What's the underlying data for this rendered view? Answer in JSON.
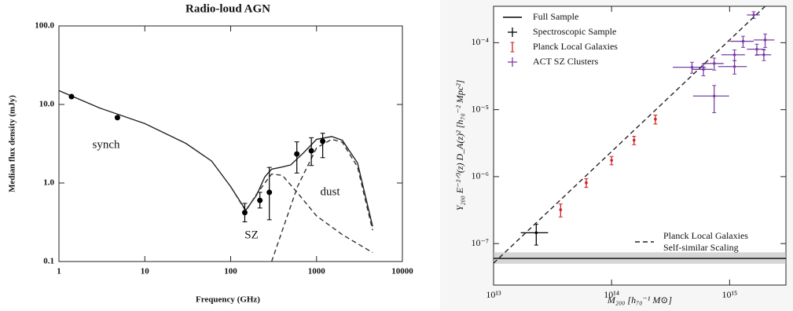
{
  "chart_data": [
    {
      "type": "line",
      "title": "Radio-loud AGN",
      "x_label": "Frequency (GHz)",
      "y_label": "Median flux density (mJy)",
      "xscale": "log",
      "yscale": "log",
      "xlim": [
        1,
        10000
      ],
      "ylim": [
        0.1,
        100
      ],
      "xticks": [
        1,
        10,
        100,
        1000,
        10000
      ],
      "yticks": [
        {
          "value": 0.1,
          "label": "0.1"
        },
        {
          "value": 1,
          "label": "1.0"
        },
        {
          "value": 10,
          "label": "10.0"
        },
        {
          "value": 100,
          "label": "100.0"
        }
      ],
      "annotations": [
        "synch",
        "SZ",
        "dust"
      ],
      "series": [
        {
          "kind": "line",
          "style": "solid",
          "color": "#222222",
          "x": [
            1,
            3,
            10,
            30,
            60,
            100,
            150,
            200,
            250,
            300,
            400,
            500,
            700,
            1000,
            1500,
            2000,
            3000,
            4500
          ],
          "values": [
            15,
            9,
            5.7,
            3.2,
            1.9,
            0.9,
            0.45,
            0.7,
            1.2,
            1.5,
            1.6,
            1.7,
            2.4,
            3.6,
            3.9,
            3.5,
            1.8,
            0.28
          ]
        },
        {
          "kind": "line",
          "style": "dashed",
          "color": "#333333",
          "x": [
            100,
            150,
            200,
            300,
            400,
            600,
            1000,
            2000,
            4500
          ],
          "values": [
            0.9,
            0.44,
            0.72,
            1.3,
            1.25,
            0.75,
            0.38,
            0.22,
            0.13
          ]
        },
        {
          "kind": "line",
          "style": "dashed",
          "color": "#333333",
          "x": [
            300,
            400,
            600,
            1000,
            1500,
            2000,
            3000,
            4500
          ],
          "values": [
            0.1,
            0.25,
            0.9,
            2.8,
            3.6,
            3.3,
            1.6,
            0.25
          ]
        },
        {
          "kind": "errorbar",
          "color": "#000000",
          "x": [
            1.4,
            4.8,
            146,
            219,
            282,
            590,
            870,
            1180
          ],
          "values": [
            12.6,
            6.8,
            0.42,
            0.6,
            0.76,
            2.34,
            2.57,
            3.4
          ],
          "yerr_low": [
            0,
            0,
            0.1,
            0.12,
            0.42,
            1.0,
            0.9,
            1.3
          ],
          "yerr_high": [
            0,
            0,
            0.13,
            0.16,
            0.82,
            1.0,
            1.2,
            0.9
          ]
        }
      ]
    },
    {
      "type": "scatter",
      "x_label": "M₂₀₀ [h₇₀⁻¹ M⊙]",
      "y_label": "Y₂₀₀ E⁻²ᐟ³(z) D_A(z)² [h₇₀⁻² Mpc²]",
      "xscale": "log",
      "yscale": "log",
      "xlim": [
        10000000000000.0,
        3000000000000000.0
      ],
      "ylim": [
        2.4e-08,
        0.00035
      ],
      "xticks": [
        {
          "value": 10000000000000.0,
          "label": "10¹³"
        },
        {
          "value": 100000000000000.0,
          "label": "10¹⁴"
        },
        {
          "value": 1000000000000000.0,
          "label": "10¹⁵"
        }
      ],
      "yticks": [
        {
          "value": 1e-07,
          "label": "10⁻⁷"
        },
        {
          "value": 1e-06,
          "label": "10⁻⁶"
        },
        {
          "value": 1e-05,
          "label": "10⁻⁵"
        },
        {
          "value": 0.0001,
          "label": "10⁻⁴"
        }
      ],
      "legend": "upper left",
      "series": [
        {
          "name": "Full Sample",
          "kind": "line",
          "style": "solid",
          "color": "#000000",
          "x": [
            10000000000000.0,
            3000000000000000.0
          ],
          "values": [
            6e-08,
            6e-08
          ],
          "band_low": [
            5e-08,
            5e-08
          ],
          "band_high": [
            7.4e-08,
            7.4e-08
          ]
        },
        {
          "name": "Spectroscopic Sample",
          "kind": "errorbar",
          "color": "#000000",
          "x": [
            23000000000000.0
          ],
          "values": [
            1.45e-07
          ],
          "xerr": [
            6000000000000.0
          ],
          "yerr": [
            5e-08
          ]
        },
        {
          "name": "Planck Local Galaxies",
          "kind": "errorbar",
          "color": "#cc2222",
          "x": [
            37000000000000.0,
            61000000000000.0,
            100000000000000.0,
            155000000000000.0,
            235000000000000.0
          ],
          "values": [
            3.2e-07,
            8.1e-07,
            1.75e-06,
            3.5e-06,
            7.2e-06
          ],
          "xerr": [
            0,
            0,
            0,
            0,
            0
          ],
          "yerr": [
            7e-08,
            1.2e-07,
            2.5e-07,
            5e-07,
            1.1e-06
          ]
        },
        {
          "name": "ACT SZ Clusters",
          "kind": "errorbar",
          "color": "#7a3fa6",
          "x": [
            1600000000000000.0,
            1300000000000000.0,
            2000000000000000.0,
            1700000000000000.0,
            1100000000000000.0,
            1950000000000000.0,
            740000000000000.0,
            600000000000000.0,
            1100000000000000.0,
            740000000000000.0,
            480000000000000.0
          ],
          "values": [
            0.00026,
            0.000105,
            0.00011,
            8e-05,
            6.6e-05,
            6.6e-05,
            4.9e-05,
            4e-05,
            4.4e-05,
            1.6e-05,
            4.3e-05
          ],
          "xerr": [
            200000000000000.0,
            300000000000000.0,
            400000000000000.0,
            300000000000000.0,
            250000000000000.0,
            300000000000000.0,
            150000000000000.0,
            120000000000000.0,
            300000000000000.0,
            250000000000000.0,
            150000000000000.0
          ],
          "yerr": [
            3e-05,
            2e-05,
            2.5e-05,
            1.5e-05,
            1.2e-05,
            1.2e-05,
            1e-05,
            8e-06,
            1e-05,
            7e-06,
            8e-06
          ]
        },
        {
          "name": [
            "Planck Local Galaxies",
            "Self-similar Scaling"
          ],
          "kind": "line",
          "style": "dashed",
          "color": "#222222",
          "legend": "lower right",
          "x": [
            10000000000000.0,
            2000000000000000.0
          ],
          "values": [
            5.1e-08,
            0.00035
          ]
        }
      ]
    }
  ]
}
